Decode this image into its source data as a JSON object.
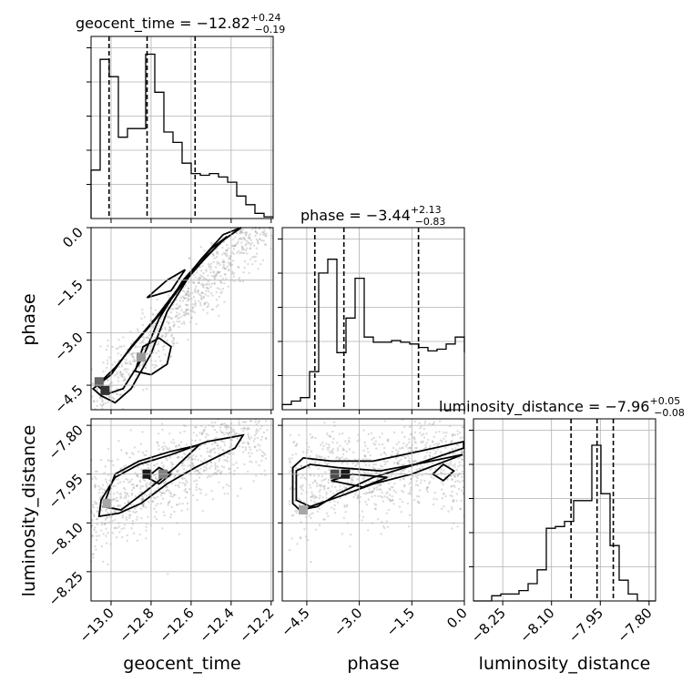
{
  "chart_data": {
    "type": "corner",
    "parameters": [
      "geocent_time",
      "phase",
      "luminosity_distance"
    ],
    "ranges": {
      "geocent_time": [
        -13.1,
        -12.19
      ],
      "phase": [
        -5.2,
        0.0
      ],
      "luminosity_distance": [
        -8.34,
        -7.78
      ]
    },
    "ticks": {
      "geocent_time": [
        -13.0,
        -12.8,
        -12.6,
        -12.4,
        -12.2
      ],
      "phase": [
        -4.5,
        -3.0,
        -1.5,
        0.0
      ],
      "luminosity_distance": [
        -8.25,
        -8.1,
        -7.95,
        -7.8
      ]
    },
    "tick_labels": {
      "geocent_time": [
        "−13.0",
        "−12.8",
        "−12.6",
        "−12.4",
        "−12.2"
      ],
      "phase": [
        "−4.5",
        "−3.0",
        "−1.5",
        "0.0"
      ],
      "luminosity_distance": [
        "−8.25",
        "−8.10",
        "−7.95",
        "−7.80"
      ]
    },
    "titles": [
      {
        "param": "geocent_time",
        "text": "geocent_time = −12.82",
        "plus": "+0.24",
        "minus": "−0.19"
      },
      {
        "param": "phase",
        "text": "phase = −3.44",
        "plus": "+2.13",
        "minus": "−0.83"
      },
      {
        "param": "luminosity_distance",
        "text": "luminosity_distance = −7.96",
        "plus": "+0.05",
        "minus": "−0.08"
      }
    ],
    "quantiles": {
      "geocent_time": [
        -13.01,
        -12.82,
        -12.58
      ],
      "phase": [
        -4.27,
        -3.44,
        -1.31
      ],
      "luminosity_distance": [
        -8.04,
        -7.96,
        -7.91
      ]
    },
    "histograms": {
      "geocent_time": {
        "edges_start": -13.1,
        "bin_width": 0.0455,
        "counts": [
          0.28,
          0.92,
          0.82,
          0.47,
          0.52,
          0.52,
          0.95,
          0.73,
          0.5,
          0.44,
          0.32,
          0.26,
          0.25,
          0.26,
          0.24,
          0.21,
          0.13,
          0.08,
          0.03,
          0.01
        ]
      },
      "phase": {
        "edges_start": -5.2,
        "bin_width": 0.26,
        "counts": [
          0.03,
          0.05,
          0.07,
          0.22,
          0.79,
          0.87,
          0.33,
          0.53,
          0.76,
          0.42,
          0.39,
          0.39,
          0.4,
          0.39,
          0.38,
          0.36,
          0.34,
          0.35,
          0.38,
          0.42,
          0.33
        ]
      },
      "luminosity_distance": {
        "edges_start": -8.34,
        "bin_width": 0.028,
        "counts": [
          0.0,
          0.0,
          0.03,
          0.04,
          0.04,
          0.06,
          0.1,
          0.18,
          0.42,
          0.43,
          0.46,
          0.58,
          0.58,
          0.9,
          0.62,
          0.32,
          0.12,
          0.04,
          0.0,
          0.0
        ]
      }
    },
    "xlabels": [
      "geocent_time",
      "phase",
      "luminosity_distance"
    ],
    "ylabels": [
      "",
      "phase",
      "luminosity_distance"
    ],
    "grid": true
  }
}
